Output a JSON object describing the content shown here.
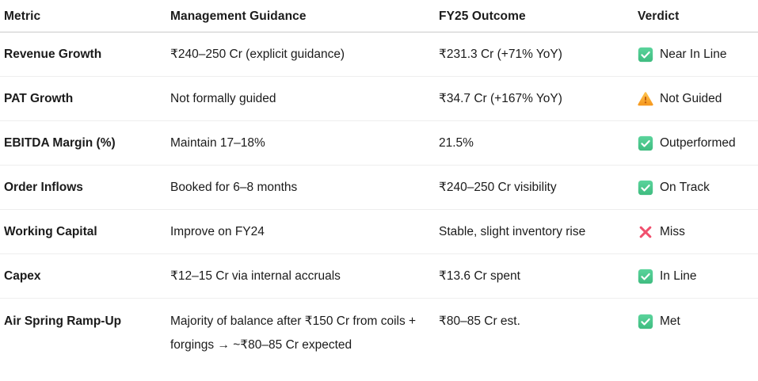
{
  "table": {
    "columns": [
      {
        "label": "Metric"
      },
      {
        "label": "Management Guidance"
      },
      {
        "label": "FY25 Outcome"
      },
      {
        "label": "Verdict"
      }
    ],
    "rows": [
      {
        "metric": "Revenue Growth",
        "guidance": "₹240–250 Cr (explicit guidance)",
        "outcome": "₹231.3 Cr (+71% YoY)",
        "verdict": {
          "icon": "check",
          "label": "Near In Line"
        }
      },
      {
        "metric": "PAT Growth",
        "guidance": "Not formally guided",
        "outcome": "₹34.7 Cr (+167% YoY)",
        "verdict": {
          "icon": "warning",
          "label": "Not Guided"
        }
      },
      {
        "metric": "EBITDA Margin (%)",
        "guidance": "Maintain 17–18%",
        "outcome": "21.5%",
        "verdict": {
          "icon": "check",
          "label": "Outperformed"
        }
      },
      {
        "metric": "Order Inflows",
        "guidance": "Booked for 6–8 months",
        "outcome": "₹240–250 Cr visibility",
        "verdict": {
          "icon": "check",
          "label": "On Track"
        }
      },
      {
        "metric": "Working Capital",
        "guidance": "Improve on FY24",
        "outcome": "Stable, slight inventory rise",
        "verdict": {
          "icon": "cross",
          "label": "Miss"
        }
      },
      {
        "metric": "Capex",
        "guidance": "₹12–15 Cr via internal accruals",
        "outcome": "₹13.6 Cr spent",
        "verdict": {
          "icon": "check",
          "label": "In Line"
        }
      },
      {
        "metric": "Air Spring Ramp-Up",
        "guidance": "Majority of balance after ₹150 Cr from coils + forgings → ~₹80–85 Cr expected",
        "outcome": "₹80–85 Cr est.",
        "verdict": {
          "icon": "check",
          "label": "Met"
        }
      }
    ]
  },
  "colors": {
    "text": "#1b1b1b",
    "header_border": "#c9c9c9",
    "row_border": "#eeeeee",
    "check_green_top": "#5bd49c",
    "check_green_bottom": "#3fbc80",
    "warning_amber_top": "#fdc14b",
    "warning_amber_bottom": "#f6991f",
    "warning_exclaim": "#c25e0e",
    "cross_red": "#f04f6d"
  }
}
